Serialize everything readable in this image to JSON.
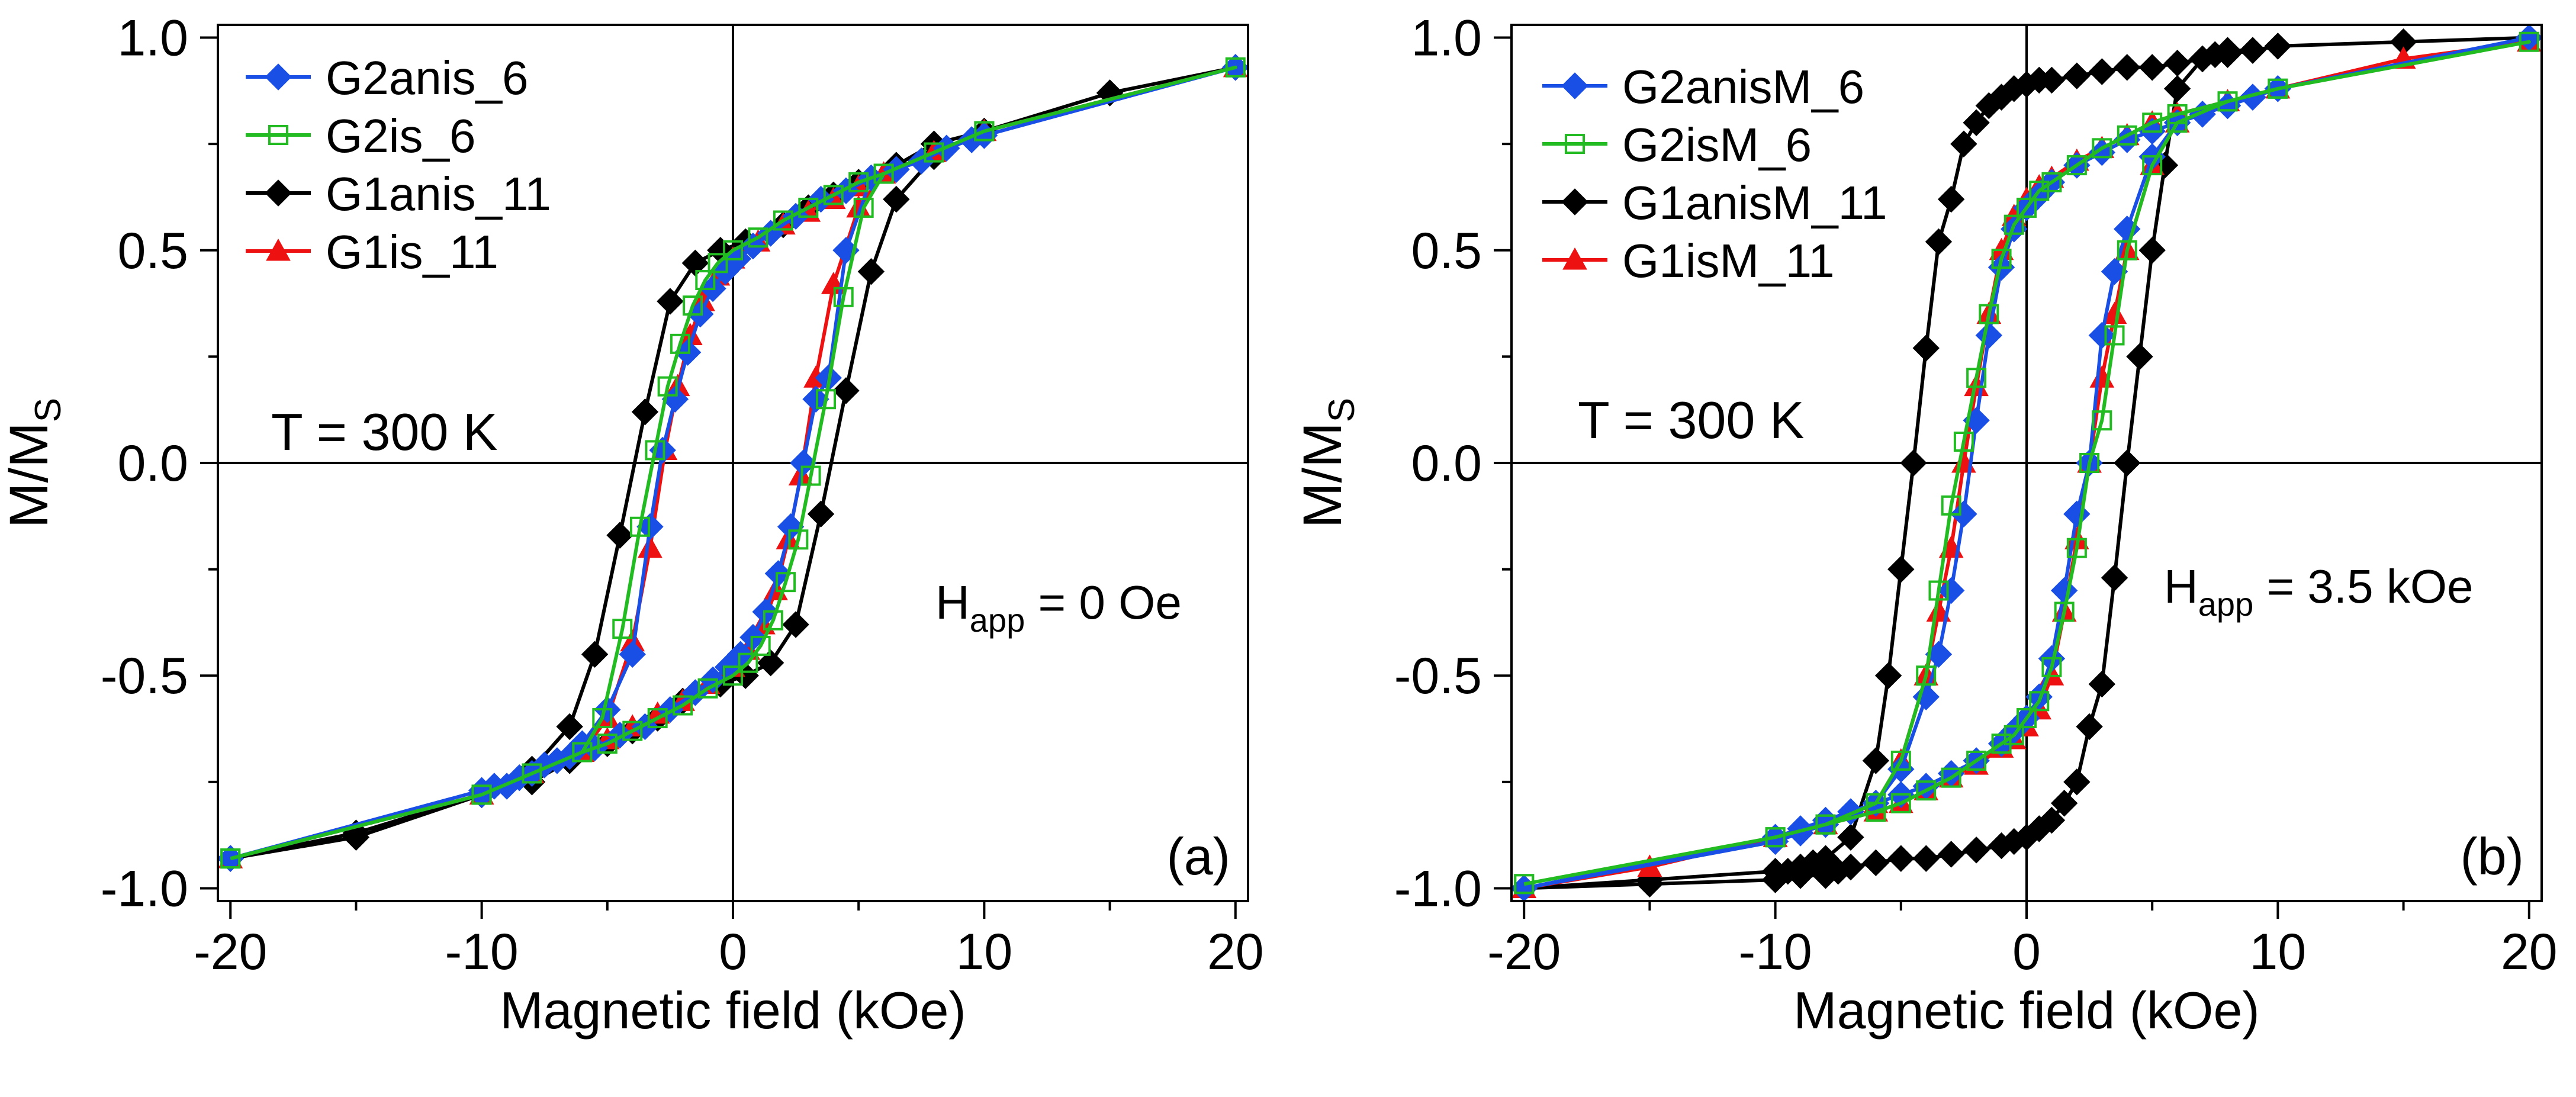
{
  "chart_data": [
    {
      "type": "line",
      "panel_label": "(a)",
      "xlabel": "Magnetic field (kOe)",
      "ylabel": "M/M",
      "ylabel_sub": "S",
      "xlim": [
        -20.5,
        20.5
      ],
      "ylim": [
        -1.03,
        1.03
      ],
      "xticks": [
        -20,
        -10,
        0,
        10,
        20
      ],
      "xtick_labels": [
        "-20",
        "-10",
        "0",
        "10",
        "20"
      ],
      "yticks": [
        -1.0,
        -0.5,
        0.0,
        0.5,
        1.0
      ],
      "ytick_labels": [
        "-1.0",
        "-0.5",
        "0.0",
        "0.5",
        "1.0"
      ],
      "legend_position": "top-left",
      "annotations": {
        "temperature": "T = 300 K",
        "field_main": "H",
        "field_sub": "app",
        "field_value": " = 0 Oe"
      },
      "series": [
        {
          "name": "G1anis_11",
          "color": "#000000",
          "marker": "diamond",
          "x": [
            -20,
            -15,
            -10,
            -8,
            -6.5,
            -5.5,
            -4.5,
            -3.5,
            -2.5,
            -1.5,
            -0.5,
            0.5,
            2,
            3,
            4,
            5,
            6.5,
            8,
            10,
            15,
            20,
            15,
            10,
            8,
            6.5,
            5.5,
            4.5,
            3.5,
            2.5,
            1.5,
            0.5,
            -0.5,
            -2,
            -3,
            -4,
            -5,
            -6.5,
            -8,
            -10,
            -15,
            -20
          ],
          "y": [
            -0.93,
            -0.88,
            -0.78,
            -0.72,
            -0.62,
            -0.45,
            -0.17,
            0.12,
            0.38,
            0.47,
            0.5,
            0.52,
            0.56,
            0.6,
            0.63,
            0.66,
            0.7,
            0.75,
            0.78,
            0.87,
            0.93,
            0.87,
            0.78,
            0.72,
            0.62,
            0.45,
            0.17,
            -0.12,
            -0.38,
            -0.47,
            -0.5,
            -0.52,
            -0.56,
            -0.6,
            -0.63,
            -0.66,
            -0.7,
            -0.75,
            -0.78,
            -0.87,
            -0.93
          ]
        },
        {
          "name": "G1is_11",
          "color": "#ee1111",
          "marker": "triangle",
          "x": [
            -20,
            -10,
            -8,
            -6,
            -5,
            -4,
            -3.3,
            -2.7,
            -2.2,
            -1.7,
            -1.2,
            -0.6,
            0,
            1,
            2,
            3,
            4,
            5,
            6,
            8,
            10,
            20,
            10,
            8,
            6,
            5,
            4,
            3.3,
            2.7,
            2.2,
            1.7,
            1.2,
            0.6,
            0,
            -1,
            -2,
            -3,
            -4,
            -5,
            -6,
            -8,
            -10,
            -20
          ],
          "y": [
            -0.93,
            -0.78,
            -0.73,
            -0.68,
            -0.6,
            -0.42,
            -0.2,
            0.03,
            0.18,
            0.3,
            0.38,
            0.44,
            0.48,
            0.52,
            0.56,
            0.59,
            0.62,
            0.65,
            0.68,
            0.73,
            0.78,
            0.93,
            0.78,
            0.73,
            0.68,
            0.6,
            0.42,
            0.2,
            -0.03,
            -0.18,
            -0.3,
            -0.38,
            -0.44,
            -0.48,
            -0.52,
            -0.56,
            -0.59,
            -0.62,
            -0.65,
            -0.68,
            -0.73,
            -0.78,
            -0.93
          ]
        },
        {
          "name": "G2anis_6",
          "color": "#1a4fe6",
          "marker": "diamond",
          "x": [
            -20,
            -10,
            -9,
            -8,
            -7,
            -6,
            -5,
            -4,
            -3.3,
            -2.8,
            -2.3,
            -1.8,
            -1.3,
            -0.8,
            -0.3,
            0.2,
            0.8,
            1.5,
            2.5,
            3.5,
            4.5,
            5.5,
            6.5,
            7.5,
            8.5,
            9.5,
            10,
            20,
            10,
            9.5,
            8.5,
            7.5,
            6.5,
            5.5,
            4.5,
            3.8,
            3.3,
            2.8,
            2.3,
            1.8,
            1.3,
            0.8,
            0.3,
            -0.2,
            -0.8,
            -1.5,
            -2.5,
            -3.5,
            -4.5,
            -5.5,
            -6.5,
            -7.5,
            -8.5,
            -9.5,
            -10,
            -20
          ],
          "y": [
            -0.93,
            -0.78,
            -0.76,
            -0.73,
            -0.7,
            -0.66,
            -0.58,
            -0.45,
            -0.15,
            0.03,
            0.15,
            0.26,
            0.35,
            0.41,
            0.45,
            0.48,
            0.51,
            0.54,
            0.58,
            0.62,
            0.64,
            0.67,
            0.69,
            0.71,
            0.74,
            0.76,
            0.77,
            0.93,
            0.77,
            0.76,
            0.74,
            0.71,
            0.69,
            0.67,
            0.5,
            0.2,
            0.15,
            0.0,
            -0.15,
            -0.26,
            -0.35,
            -0.41,
            -0.45,
            -0.48,
            -0.51,
            -0.54,
            -0.58,
            -0.62,
            -0.64,
            -0.67,
            -0.69,
            -0.71,
            -0.74,
            -0.76,
            -0.77,
            -0.93
          ]
        },
        {
          "name": "G2is_6",
          "color": "#22bb22",
          "marker": "square-open",
          "x": [
            -20,
            -10,
            -8,
            -6,
            -5.2,
            -4.4,
            -3.7,
            -3.1,
            -2.6,
            -2.1,
            -1.6,
            -1.1,
            -0.6,
            0,
            1,
            2,
            3,
            4,
            5,
            6,
            8,
            10,
            20,
            10,
            8,
            6,
            5.2,
            4.4,
            3.7,
            3.1,
            2.6,
            2.1,
            1.6,
            1.1,
            0.6,
            0,
            -1,
            -2,
            -3,
            -4,
            -5,
            -6,
            -8,
            -10,
            -20
          ],
          "y": [
            -0.93,
            -0.78,
            -0.73,
            -0.68,
            -0.6,
            -0.39,
            -0.15,
            0.03,
            0.18,
            0.28,
            0.37,
            0.43,
            0.47,
            0.5,
            0.53,
            0.57,
            0.6,
            0.63,
            0.66,
            0.68,
            0.73,
            0.78,
            0.93,
            0.78,
            0.73,
            0.68,
            0.6,
            0.39,
            0.15,
            -0.03,
            -0.18,
            -0.28,
            -0.37,
            -0.43,
            -0.47,
            -0.5,
            -0.53,
            -0.57,
            -0.6,
            -0.63,
            -0.66,
            -0.68,
            -0.73,
            -0.78,
            -0.93
          ]
        }
      ]
    },
    {
      "type": "line",
      "panel_label": "(b)",
      "xlabel": "Magnetic field (kOe)",
      "ylabel": "M/M",
      "ylabel_sub": "S",
      "xlim": [
        -20.5,
        20.5
      ],
      "ylim": [
        -1.03,
        1.03
      ],
      "xticks": [
        -20,
        -10,
        0,
        10,
        20
      ],
      "xtick_labels": [
        "-20",
        "-10",
        "0",
        "10",
        "20"
      ],
      "yticks": [
        -1.0,
        -0.5,
        0.0,
        0.5,
        1.0
      ],
      "ytick_labels": [
        "-1.0",
        "-0.5",
        "0.0",
        "0.5",
        "1.0"
      ],
      "legend_position": "top-left",
      "annotations": {
        "temperature": "T = 300 K",
        "field_main": "H",
        "field_sub": "app",
        "field_value": " = 3.5 kOe"
      },
      "series": [
        {
          "name": "G1anisM_11",
          "color": "#000000",
          "marker": "diamond",
          "x": [
            -20,
            -15,
            -10,
            -9.5,
            -9,
            -8.5,
            -8,
            -7,
            -6,
            -5.5,
            -5,
            -4.5,
            -4,
            -3.5,
            -3,
            -2.5,
            -2,
            -1.5,
            -1,
            -0.5,
            0,
            0.5,
            1,
            2,
            3,
            4,
            5,
            6,
            7,
            7.5,
            8,
            9,
            10,
            15,
            20,
            15,
            10,
            9,
            8,
            7.5,
            7,
            6,
            5.5,
            5,
            4.5,
            4,
            3.5,
            3,
            2.5,
            2,
            1.5,
            1,
            0.5,
            0,
            -0.5,
            -1,
            -2,
            -3,
            -4,
            -5,
            -6,
            -7,
            -7.5,
            -8,
            -9,
            -10,
            -15,
            -20
          ],
          "y": [
            -1.0,
            -0.98,
            -0.96,
            -0.96,
            -0.95,
            -0.94,
            -0.93,
            -0.88,
            -0.7,
            -0.5,
            -0.25,
            0.0,
            0.27,
            0.52,
            0.62,
            0.75,
            0.8,
            0.84,
            0.86,
            0.88,
            0.89,
            0.9,
            0.9,
            0.91,
            0.92,
            0.93,
            0.93,
            0.94,
            0.95,
            0.96,
            0.97,
            0.97,
            0.98,
            0.99,
            1.0,
            0.99,
            0.98,
            0.97,
            0.96,
            0.96,
            0.95,
            0.88,
            0.7,
            0.5,
            0.25,
            0.0,
            -0.27,
            -0.52,
            -0.62,
            -0.75,
            -0.8,
            -0.84,
            -0.86,
            -0.88,
            -0.89,
            -0.9,
            -0.91,
            -0.92,
            -0.93,
            -0.93,
            -0.94,
            -0.95,
            -0.96,
            -0.97,
            -0.97,
            -0.98,
            -0.99,
            -1.0
          ]
        },
        {
          "name": "G1isM_11",
          "color": "#ee1111",
          "marker": "triangle",
          "x": [
            -20,
            -15,
            -10,
            -8,
            -6,
            -5,
            -4,
            -3.5,
            -3,
            -2.5,
            -2,
            -1.5,
            -1,
            -0.5,
            0,
            0.5,
            1,
            2,
            3,
            4,
            5,
            6,
            8,
            10,
            15,
            20,
            15,
            10,
            8,
            6,
            5,
            4,
            3.5,
            3,
            2.5,
            2,
            1.5,
            1,
            0.5,
            0,
            -0.5,
            -1,
            -2,
            -3,
            -4,
            -5,
            -6,
            -8,
            -10,
            -15,
            -20
          ],
          "y": [
            -1.0,
            -0.95,
            -0.88,
            -0.85,
            -0.8,
            -0.7,
            -0.5,
            -0.35,
            -0.2,
            0.0,
            0.18,
            0.35,
            0.5,
            0.58,
            0.62,
            0.65,
            0.67,
            0.71,
            0.74,
            0.77,
            0.8,
            0.82,
            0.85,
            0.88,
            0.95,
            0.99,
            0.95,
            0.88,
            0.85,
            0.8,
            0.7,
            0.5,
            0.35,
            0.2,
            0.0,
            -0.18,
            -0.35,
            -0.5,
            -0.58,
            -0.62,
            -0.65,
            -0.67,
            -0.71,
            -0.74,
            -0.77,
            -0.8,
            -0.82,
            -0.85,
            -0.88,
            -0.95,
            -1.0
          ]
        },
        {
          "name": "G2anisM_6",
          "color": "#1a4fe6",
          "marker": "diamond",
          "x": [
            -20,
            -10,
            -9,
            -8,
            -7,
            -6,
            -5,
            -4,
            -3.5,
            -3,
            -2.5,
            -2,
            -1.5,
            -1,
            -0.5,
            0,
            0.5,
            1,
            2,
            3,
            4,
            5,
            6,
            7,
            8,
            9,
            10,
            20,
            10,
            9,
            8,
            7,
            6,
            5,
            4,
            3.5,
            3,
            2.5,
            2,
            1.5,
            1,
            0.5,
            0,
            -0.5,
            -1,
            -2,
            -3,
            -4,
            -5,
            -6,
            -7,
            -8,
            -9,
            -10,
            -20
          ],
          "y": [
            -1.0,
            -0.89,
            -0.87,
            -0.85,
            -0.82,
            -0.8,
            -0.72,
            -0.55,
            -0.45,
            -0.3,
            -0.12,
            0.1,
            0.3,
            0.46,
            0.55,
            0.6,
            0.63,
            0.66,
            0.7,
            0.73,
            0.76,
            0.78,
            0.8,
            0.82,
            0.84,
            0.86,
            0.88,
            1.0,
            0.88,
            0.86,
            0.84,
            0.82,
            0.8,
            0.72,
            0.55,
            0.45,
            0.3,
            0.0,
            -0.12,
            -0.3,
            -0.46,
            -0.55,
            -0.6,
            -0.63,
            -0.66,
            -0.7,
            -0.73,
            -0.76,
            -0.78,
            -0.8,
            -0.82,
            -0.84,
            -0.86,
            -0.88,
            -1.0
          ]
        },
        {
          "name": "G2isM_6",
          "color": "#22bb22",
          "marker": "square-open",
          "x": [
            -20,
            -10,
            -8,
            -6,
            -5,
            -4,
            -3.5,
            -3,
            -2.5,
            -2,
            -1.5,
            -1,
            -0.5,
            0,
            0.5,
            1,
            2,
            3,
            4,
            5,
            6,
            8,
            10,
            20,
            10,
            8,
            6,
            5,
            4,
            3.5,
            3,
            2.5,
            2,
            1.5,
            1,
            0.5,
            0,
            -0.5,
            -1,
            -2,
            -3,
            -4,
            -5,
            -6,
            -8,
            -10,
            -20
          ],
          "y": [
            -0.99,
            -0.88,
            -0.85,
            -0.8,
            -0.7,
            -0.5,
            -0.3,
            -0.1,
            0.05,
            0.2,
            0.35,
            0.48,
            0.56,
            0.6,
            0.64,
            0.66,
            0.7,
            0.74,
            0.77,
            0.8,
            0.82,
            0.85,
            0.88,
            0.99,
            0.88,
            0.85,
            0.8,
            0.7,
            0.5,
            0.3,
            0.1,
            0.0,
            -0.2,
            -0.35,
            -0.48,
            -0.56,
            -0.6,
            -0.64,
            -0.66,
            -0.7,
            -0.74,
            -0.77,
            -0.8,
            -0.82,
            -0.85,
            -0.88,
            -0.99
          ]
        }
      ],
      "legend_order": [
        "G2anisM_6",
        "G2isM_6",
        "G1anisM_11",
        "G1isM_11"
      ]
    }
  ],
  "legend_order_a": [
    "G2anis_6",
    "G2is_6",
    "G1anis_11",
    "G1is_11"
  ]
}
